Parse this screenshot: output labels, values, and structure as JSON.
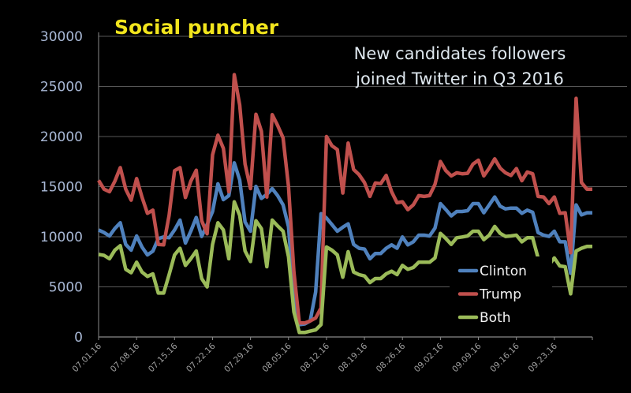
{
  "logo": {
    "text": "Social puncher",
    "color": "#f2e51d"
  },
  "chart_data": {
    "type": "line",
    "title_lines": [
      "New candidates followers",
      "joined Twitter in Q3 2016"
    ],
    "xlabel": "",
    "ylabel": "",
    "ylim": [
      0,
      30000
    ],
    "y_ticks": [
      "0",
      "5000",
      "10000",
      "15000",
      "20000",
      "25000",
      "30000"
    ],
    "x_ticks": [
      "07.01.16",
      "07.08.16",
      "07.15.16",
      "07.22.16",
      "07.29.16",
      "08.05.16",
      "08.12.16",
      "08.19.16",
      "08.26.16",
      "09.02.16",
      "09.09.16",
      "09.16.16",
      "09.23.16"
    ],
    "grid": true,
    "legend_position": "bottom-right",
    "x": [
      "07.01.16",
      "07.02.16",
      "07.03.16",
      "07.04.16",
      "07.05.16",
      "07.06.16",
      "07.07.16",
      "07.08.16",
      "07.09.16",
      "07.10.16",
      "07.11.16",
      "07.12.16",
      "07.13.16",
      "07.14.16",
      "07.15.16",
      "07.16.16",
      "07.17.16",
      "07.18.16",
      "07.19.16",
      "07.20.16",
      "07.21.16",
      "07.22.16",
      "07.23.16",
      "07.24.16",
      "07.25.16",
      "07.26.16",
      "07.27.16",
      "07.28.16",
      "07.29.16",
      "07.30.16",
      "07.31.16",
      "08.01.16",
      "08.02.16",
      "08.03.16",
      "08.04.16",
      "08.05.16",
      "08.06.16",
      "08.07.16",
      "08.08.16",
      "08.09.16",
      "08.10.16",
      "08.11.16",
      "08.12.16",
      "08.13.16",
      "08.14.16",
      "08.15.16",
      "08.16.16",
      "08.17.16",
      "08.18.16",
      "08.19.16",
      "08.20.16",
      "08.21.16",
      "08.22.16",
      "08.23.16",
      "08.24.16",
      "08.25.16",
      "08.26.16",
      "08.27.16",
      "08.28.16",
      "08.29.16",
      "08.30.16",
      "08.31.16",
      "09.01.16",
      "09.02.16",
      "09.03.16",
      "09.04.16",
      "09.05.16",
      "09.06.16",
      "09.07.16",
      "09.08.16",
      "09.09.16",
      "09.10.16",
      "09.11.16",
      "09.12.16",
      "09.13.16",
      "09.14.16",
      "09.15.16",
      "09.16.16",
      "09.17.16",
      "09.18.16",
      "09.19.16",
      "09.20.16",
      "09.21.16",
      "09.22.16",
      "09.23.16",
      "09.24.16",
      "09.25.16",
      "09.26.16",
      "09.27.16",
      "09.28.16",
      "09.29.16",
      "09.30.16"
    ],
    "series": [
      {
        "name": "Clinton",
        "color": "#4f81bd",
        "values": [
          10680,
          10420,
          10080,
          10820,
          11390,
          9240,
          8660,
          10080,
          8980,
          8190,
          8560,
          9820,
          9980,
          9900,
          10680,
          11660,
          9370,
          10550,
          11920,
          10030,
          11210,
          12520,
          15280,
          13700,
          14100,
          17380,
          15670,
          11470,
          10550,
          15020,
          13830,
          14230,
          14800,
          14100,
          13180,
          11000,
          4000,
          1230,
          1300,
          1600,
          4500,
          12300,
          11870,
          11210,
          10550,
          10950,
          11290,
          9240,
          8850,
          8770,
          7800,
          8320,
          8320,
          8850,
          9190,
          8850,
          9980,
          9190,
          9500,
          10160,
          10160,
          10080,
          10870,
          13310,
          12710,
          12080,
          12520,
          12520,
          12600,
          13310,
          13310,
          12390,
          13180,
          13970,
          13050,
          12780,
          12860,
          12860,
          12340,
          12650,
          12440,
          10420,
          10160,
          10030,
          10550,
          9500,
          9500,
          6350,
          13180,
          12180,
          12390,
          12390
        ]
      },
      {
        "name": "Trump",
        "color": "#c0504d",
        "values": [
          15620,
          14750,
          14490,
          15540,
          16900,
          14750,
          13650,
          15800,
          13960,
          12340,
          12650,
          9240,
          9190,
          12130,
          16590,
          16900,
          13910,
          15540,
          16640,
          11600,
          10290,
          18170,
          20130,
          18820,
          14490,
          26170,
          23150,
          17250,
          14800,
          22230,
          20530,
          13960,
          22180,
          21100,
          19870,
          15000,
          6500,
          1400,
          1400,
          1600,
          1900,
          2900,
          20000,
          19080,
          18690,
          14360,
          19350,
          16720,
          16200,
          15410,
          14020,
          15360,
          15300,
          16120,
          14490,
          13390,
          13490,
          12700,
          13180,
          14100,
          14020,
          14100,
          15230,
          17510,
          16590,
          16070,
          16380,
          16280,
          16330,
          17250,
          17640,
          16070,
          16850,
          17770,
          16850,
          16380,
          16120,
          16800,
          15590,
          16460,
          16280,
          14020,
          13970,
          13310,
          13970,
          12340,
          12390,
          8400,
          23810,
          15410,
          14750,
          14750
        ]
      },
      {
        "name": "Both",
        "color": "#9bbb59",
        "values": [
          8240,
          8140,
          7800,
          8660,
          9110,
          6750,
          6410,
          7460,
          6480,
          6040,
          6300,
          4380,
          4380,
          6220,
          8190,
          8850,
          7140,
          7800,
          8580,
          5830,
          4990,
          9240,
          11390,
          10680,
          7800,
          13490,
          12130,
          8580,
          7530,
          11600,
          10820,
          7010,
          11660,
          11080,
          10550,
          8000,
          2500,
          450,
          450,
          580,
          710,
          1230,
          8980,
          8660,
          8190,
          5960,
          8510,
          6480,
          6220,
          6090,
          5430,
          5830,
          5830,
          6300,
          6560,
          6220,
          7140,
          6750,
          6930,
          7460,
          7460,
          7460,
          7880,
          10340,
          9820,
          9240,
          9900,
          9980,
          10080,
          10550,
          10550,
          9710,
          10160,
          11030,
          10340,
          10030,
          10080,
          10160,
          9500,
          9900,
          9900,
          7880,
          7610,
          7190,
          7880,
          7090,
          7010,
          4300,
          8580,
          8850,
          9030,
          9030
        ]
      }
    ]
  }
}
